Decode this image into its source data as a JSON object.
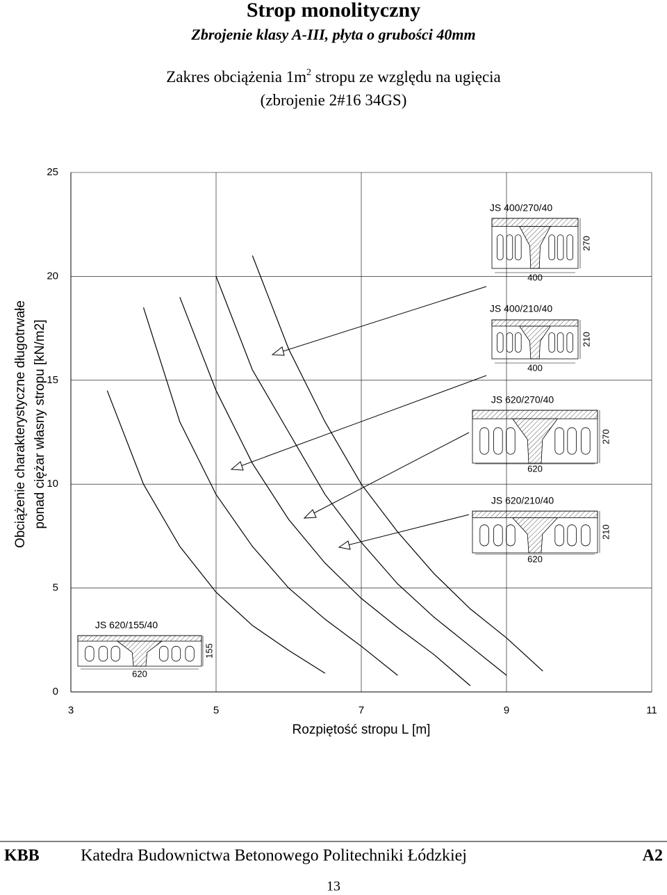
{
  "header": {
    "title": "Strop monolityczny",
    "subtitle": "Zbrojenie klasy A-III, płyta o grubości 40mm",
    "heading_before_sup": "Zakres obciążenia 1m",
    "heading_sup": "2",
    "heading_after_sup": " stropu ze względu na ugięcia",
    "heading_line2": "(zbrojenie 2#16 34GS)"
  },
  "chart_data": {
    "type": "line",
    "x": [
      3.5,
      4,
      4.5,
      5,
      5.5,
      6,
      6.5,
      7,
      7.5,
      8,
      8.5,
      9,
      9.5
    ],
    "series": [
      {
        "color": "#000000",
        "values": [
          14.5,
          10,
          7,
          4.8,
          3.2,
          2.0,
          0.9,
          null,
          null,
          null,
          null,
          null,
          null
        ]
      },
      {
        "color": "#000000",
        "values": [
          null,
          18.5,
          13,
          9.5,
          7,
          5,
          3.5,
          2.2,
          0.8,
          null,
          null,
          null,
          null
        ]
      },
      {
        "color": "#000000",
        "values": [
          null,
          null,
          19,
          14.5,
          11,
          8.3,
          6.2,
          4.5,
          3.1,
          1.8,
          0.3,
          null,
          null
        ]
      },
      {
        "color": "#000000",
        "values": [
          null,
          null,
          null,
          20,
          15.5,
          12.5,
          9.5,
          7.2,
          5.2,
          3.6,
          2.2,
          0.8,
          null
        ]
      },
      {
        "color": "#000000",
        "values": [
          null,
          null,
          null,
          null,
          21,
          16.5,
          13,
          10,
          7.7,
          5.7,
          4,
          2.6,
          1.0
        ]
      }
    ],
    "xlim": [
      3,
      11
    ],
    "xticks": [
      3,
      5,
      7,
      9,
      11
    ],
    "ylim": [
      0,
      25
    ],
    "yticks": [
      0,
      5,
      10,
      15,
      20,
      25
    ],
    "grid": true,
    "xlabel": "Rozpiętość stropu L [m]",
    "ylabel": [
      "Obciążenie charakterystyczne długotrwałe",
      "ponad ciężar własny stropu [kN/m2]"
    ]
  },
  "sections": [
    {
      "label": "JS 400/270/40",
      "height": "270",
      "width": "400"
    },
    {
      "label": "JS 400/210/40",
      "height": "210",
      "width": "400"
    },
    {
      "label": "JS 620/270/40",
      "height": "270",
      "width": "620"
    },
    {
      "label": "JS 620/210/40",
      "height": "210",
      "width": "620"
    },
    {
      "label": "JS 620/155/40",
      "height": "155",
      "width": "620"
    }
  ],
  "footer": {
    "left": "KBB",
    "center": "Katedra Budownictwa Betonowego Politechniki Łódzkiej",
    "right": "A2",
    "page": "13"
  }
}
